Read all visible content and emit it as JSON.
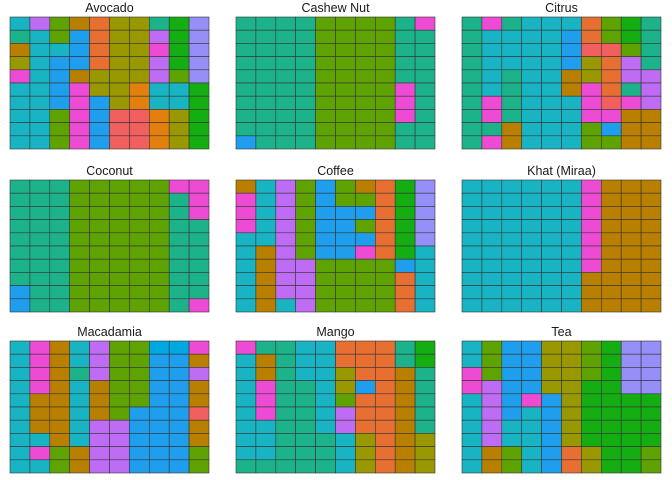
{
  "chart_data": {
    "type": "heatmap",
    "subtype": "faceted waffle grids (10 columns x 10 rows per panel)",
    "grid": false,
    "legend": "none",
    "palette": {
      "A": "#1DB38A",
      "B": "#5EA302",
      "C": "#18B4C4",
      "D": "#1E9EEC",
      "E": "#B87F00",
      "F": "#E86F32",
      "G": "#ED4BD4",
      "H": "#BE6CF4",
      "I": "#14AD12",
      "J": "#968FF7",
      "K": "#999800",
      "L": "#F25F5F",
      "M": "#E27F0D",
      "N": "#00A8E0"
    },
    "panels": [
      {
        "title": "Avocado",
        "rows": [
          "CHBEFKKAIJ",
          "ACBDFKKHIJ",
          "ECCDFKKGIJ",
          "KCDDFKKHIJ",
          "GCDEKKKHBJ",
          "CCDGKKMCCI",
          "CCDGDKMCCI",
          "CCBGDLLMKI",
          "CCBGDLLMKI",
          "CCBGDLLMKI"
        ]
      },
      {
        "title": "Cashew Nut",
        "rows": [
          "AAAABBBBAG",
          "AAAABBBBAA",
          "AAAABBBBAA",
          "AAAABBBBAA",
          "AAAABBBBAA",
          "AAAABBBBGA",
          "AAAABBBBGA",
          "AAAABBBBGA",
          "AAAABBBBAA",
          "DAAABBBBAA"
        ]
      },
      {
        "title": "Citrus",
        "rows": [
          "AGACCCFBIA",
          "ACCCCDFBIA",
          "ACCCCDLLBA",
          "ACCCCDKFHA",
          "ACACCEKFHH",
          "ACACCEGFAH",
          "AGACCCGLGH",
          "AGACCCGGEE",
          "AAECCCBDEE",
          "AGECCCBBEE"
        ]
      },
      {
        "title": "Coconut",
        "rows": [
          "AAABBBBBGG",
          "AAABBBBBAG",
          "AAABBBBBAG",
          "AAABBBBBAA",
          "AAABBBBBAA",
          "AAABBBBBAA",
          "AAABBBBBAA",
          "AAABBBBBAA",
          "DAABBBBBAA",
          "DAABBBBBAG"
        ]
      },
      {
        "title": "Coffee",
        "rows": [
          "ECHBDBEFIJ",
          "GCHBDBBFIJ",
          "GCHBDDDFIJ",
          "GCHBDDBFIJ",
          "CCHBDDDFIJ",
          "CEHBDDGFIC",
          "CEHHBBBBDC",
          "CEHHBBBBFC",
          "CEHHBBBBFC",
          "CECHBBBBFC"
        ]
      },
      {
        "title": "Khat (Miraa)",
        "rows": [
          "CCCCCCGEEE",
          "CCCCCCGEEE",
          "CCCCCCGEEE",
          "CCCCCCGEEE",
          "CCCCCCGEEE",
          "CCCCCCGEEE",
          "CCCCCCGEEE",
          "CCCCCCEEEE",
          "CCCCCCEEEE",
          "CCCCCCEEEE"
        ]
      },
      {
        "title": "Macadamia",
        "rows": [
          "CGECHBBNNG",
          "CGECHBBDDE",
          "CGEAHBBDDH",
          "CGECEBBDDE",
          "CEECEBBDDE",
          "CEECEBDDDL",
          "CEECHHDDDE",
          "CCECHHDDDE",
          "CGBEHHDDDB",
          "CCBEHHDDDB"
        ]
      },
      {
        "title": "Mango",
        "rows": [
          "GAACCFFFAI",
          "CEACCFFFAI",
          "CEACCKFFEA",
          "CGAACKDFEA",
          "CGAACBFFEA",
          "CGAACHFFEA",
          "CCAACHFFEA",
          "CCAAACKFEK",
          "CCAAACKFEK",
          "AAAAACKFEK"
        ]
      },
      {
        "title": "Tea",
        "rows": [
          "CBDDKKBIJJ",
          "CBDDKKBIJJ",
          "GBDDKKBIJJ",
          "GHDDKKIIJJ",
          "CHDGDKIIII",
          "CHDCDKIIII",
          "CHCCDKIIII",
          "CHCCDKIIII",
          "CEBCDFKIIB",
          "CEBCDFKIIB"
        ]
      }
    ]
  }
}
